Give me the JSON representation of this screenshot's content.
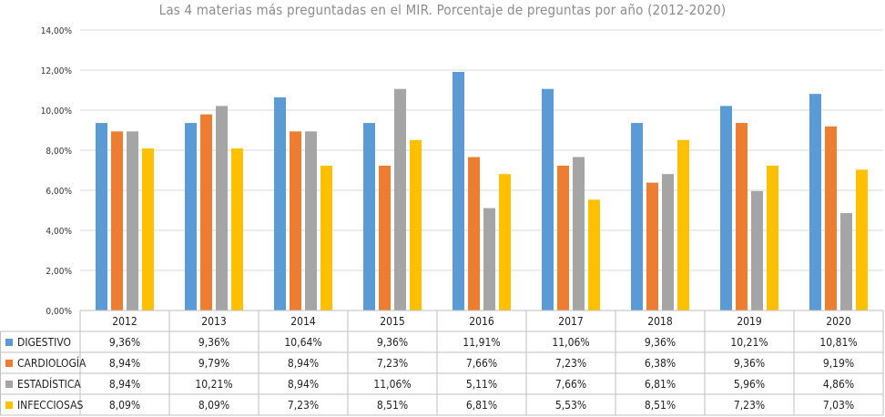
{
  "chart_data": {
    "type": "bar",
    "title": "Las 4 materias más preguntadas en el MIR. Porcentaje de preguntas por año (2012-2020)",
    "categories": [
      "2012",
      "2013",
      "2014",
      "2015",
      "2016",
      "2017",
      "2018",
      "2019",
      "2020"
    ],
    "series": [
      {
        "name": "DIGESTIVO",
        "color": "#5b9bd5",
        "values": [
          9.36,
          9.36,
          10.64,
          9.36,
          11.91,
          11.06,
          9.36,
          10.21,
          10.81
        ],
        "labels": [
          "9,36%",
          "9,36%",
          "10,64%",
          "9,36%",
          "11,91%",
          "11,06%",
          "9,36%",
          "10,21%",
          "10,81%"
        ]
      },
      {
        "name": "CARDIOLOGÍA",
        "color": "#ed7d31",
        "values": [
          8.94,
          9.79,
          8.94,
          7.23,
          7.66,
          7.23,
          6.38,
          9.36,
          9.19
        ],
        "labels": [
          "8,94%",
          "9,79%",
          "8,94%",
          "7,23%",
          "7,66%",
          "7,23%",
          "6,38%",
          "9,36%",
          "9,19%"
        ]
      },
      {
        "name": "ESTADÍSTICA",
        "color": "#a5a5a5",
        "values": [
          8.94,
          10.21,
          8.94,
          11.06,
          5.11,
          7.66,
          6.81,
          5.96,
          4.86
        ],
        "labels": [
          "8,94%",
          "10,21%",
          "8,94%",
          "11,06%",
          "5,11%",
          "7,66%",
          "6,81%",
          "5,96%",
          "4,86%"
        ]
      },
      {
        "name": "INFECCIOSAS",
        "color": "#ffc000",
        "values": [
          8.09,
          8.09,
          7.23,
          8.51,
          6.81,
          5.53,
          8.51,
          7.23,
          7.03
        ],
        "labels": [
          "8,09%",
          "8,09%",
          "7,23%",
          "8,51%",
          "6,81%",
          "5,53%",
          "8,51%",
          "7,23%",
          "7,03%"
        ]
      }
    ],
    "ylim": [
      0,
      14
    ],
    "yticks": [
      0,
      2,
      4,
      6,
      8,
      10,
      12,
      14
    ],
    "ytick_labels": [
      "0,00%",
      "2,00%",
      "4,00%",
      "6,00%",
      "8,00%",
      "10,00%",
      "12,00%",
      "14,00%"
    ],
    "grid": true,
    "legend": "data-table-left",
    "gridline_color": "#d9d9d9",
    "table_border_color": "#bfbfbf"
  }
}
